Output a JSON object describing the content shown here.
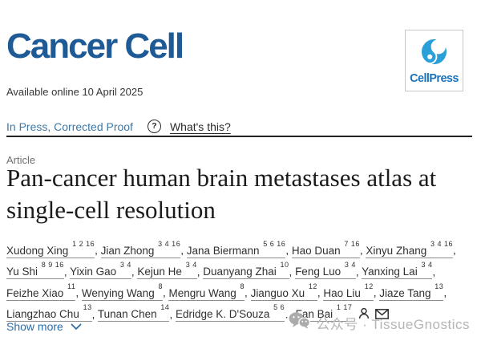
{
  "journal": {
    "name": "Cancer Cell",
    "publisher": "CellPress"
  },
  "availability": "Available online 10 April 2025",
  "status": {
    "label": "In Press, Corrected Proof",
    "help_glyph": "?",
    "help_link": "What's this?"
  },
  "article": {
    "type_label": "Article",
    "title": "Pan-cancer human brain metastases atlas at single-cell resolution",
    "title_lines": [
      "Pan-cancer human brain metastases atlas at",
      "single-cell resolution"
    ],
    "authors": {
      "lines": [
        [
          {
            "name": "Xudong Xing",
            "sup": "1 2 16",
            "sep": ", "
          },
          {
            "name": "Jian Zhong",
            "sup": "3 4 16",
            "sep": ", "
          },
          {
            "name": "Jana Biermann",
            "sup": "5 6 16",
            "sep": ", "
          },
          {
            "name": "Hao Duan",
            "sup": "7 16",
            "sep": ", "
          },
          {
            "name": "Xinyu Zhang",
            "sup": "3 4 16",
            "sep": ","
          }
        ],
        [
          {
            "name": "Yu Shi",
            "sup": "8 9 16",
            "sep": ", "
          },
          {
            "name": "Yixin Gao",
            "sup": "3 4",
            "sep": ", "
          },
          {
            "name": "Kejun He",
            "sup": "3 4",
            "sep": ", "
          },
          {
            "name": "Duanyang Zhai",
            "sup": "10",
            "sep": ", "
          },
          {
            "name": "Feng Luo",
            "sup": "3 4",
            "sep": ", "
          },
          {
            "name": "Yanxing Lai",
            "sup": "3 4",
            "sep": ","
          }
        ],
        [
          {
            "name": "Feizhe Xiao",
            "sup": "11",
            "sep": ", "
          },
          {
            "name": "Wenying Wang",
            "sup": "8",
            "sep": ", "
          },
          {
            "name": "Mengru Wang",
            "sup": "8",
            "sep": ", "
          },
          {
            "name": "Jianguo Xu",
            "sup": "12",
            "sep": ", "
          },
          {
            "name": "Hao Liu",
            "sup": "12",
            "sep": ", "
          },
          {
            "name": "Jiaze Tang",
            "sup": "13",
            "sep": ","
          }
        ],
        [
          {
            "name": "Liangzhao Chu",
            "sup": "13",
            "sep": ", "
          },
          {
            "name": "Tunan Chen",
            "sup": "14",
            "sep": ", "
          },
          {
            "name": "Edridge K. D'Souza",
            "sup": "5 6",
            "sep": "…"
          },
          {
            "name": "Fan Bai",
            "sup": "1 17",
            "sep": ""
          }
        ]
      ]
    },
    "show_more": "Show more"
  },
  "watermark": {
    "text": "公众号 · TissueGnostics"
  },
  "icons": {
    "publisher_mark": "cellpress-swirl-icon",
    "help": "question-circle-icon",
    "contact_person": "person-icon",
    "contact_email": "envelope-icon",
    "show_more_chevron": "chevron-down-icon",
    "watermark_icon": "wechat-icon"
  },
  "colors": {
    "journal_blue": "#1e5a96",
    "cellpress_swirl_blue": "#2b9fd8",
    "cellpress_text_blue": "#1c72b8",
    "status_blue": "#3d79a8",
    "show_more_blue": "#2a6da8",
    "rule_dark": "#212121",
    "body_text": "#303030",
    "watermark_gray": "#b5b5b5"
  }
}
